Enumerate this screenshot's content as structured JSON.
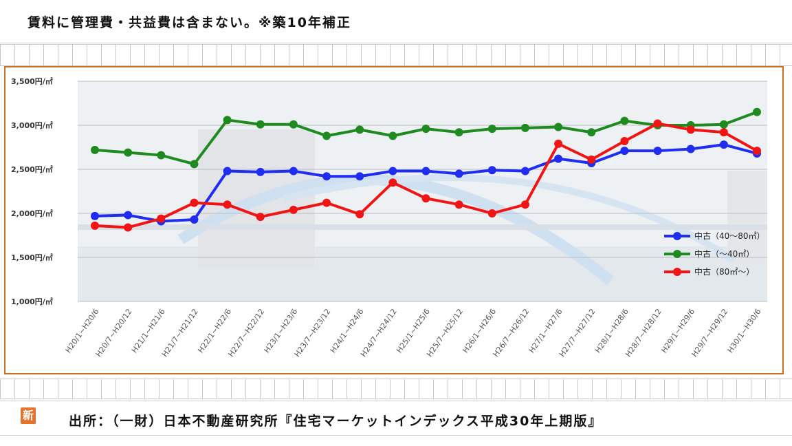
{
  "header": {
    "note": "賃料に管理費・共益費は含まない。※築10年補正"
  },
  "footer": {
    "source": "出所：（一財）日本不動産研究所『住宅マーケットインデックス平成30年上期版』"
  },
  "logo": {
    "char": "新"
  },
  "colors": {
    "frame": "#c8711f",
    "blue": "#1f2df0",
    "green": "#1f8a1f",
    "red": "#f01414"
  },
  "chart_data": {
    "type": "line",
    "title": "",
    "xlabel": "",
    "ylabel": "",
    "ylim": [
      1000,
      3500
    ],
    "yticks": [
      1000,
      1500,
      2000,
      2500,
      3000,
      3500
    ],
    "ytick_labels": [
      "1,000円/㎡",
      "1,500円/㎡",
      "2,000円/㎡",
      "2,500円/㎡",
      "3,000円/㎡",
      "3,500円/㎡"
    ],
    "grid": "horizontal",
    "legend_position": "right",
    "categories": [
      "H20/1~H20/6",
      "H20/7~H20/12",
      "H21/1~H21/6",
      "H21/7~H21/12",
      "H22/1~H22/6",
      "H22/7~H22/12",
      "H23/1~H23/6",
      "H23/7~H23/12",
      "H24/1~H24/6",
      "H24/7~H24/12",
      "H25/1~H25/6",
      "H25/7~H25/12",
      "H26/1~H26/6",
      "H26/7~H26/12",
      "H27/1~H27/6",
      "H27/7~H27/12",
      "H28/1~H28/6",
      "H28/7~H28/12",
      "H29/1~H29/6",
      "H29/7~H29/12",
      "H30/1~H30/6"
    ],
    "series": [
      {
        "name": "中古（40～80㎡）",
        "color": "#1f2df0",
        "values": [
          1970,
          1980,
          1910,
          1930,
          2480,
          2470,
          2480,
          2420,
          2420,
          2480,
          2480,
          2450,
          2490,
          2480,
          2620,
          2570,
          2710,
          2710,
          2730,
          2780,
          2680
        ]
      },
      {
        "name": "中古（～40㎡）",
        "color": "#1f8a1f",
        "values": [
          2720,
          2690,
          2660,
          2560,
          3060,
          3010,
          3010,
          2880,
          2950,
          2880,
          2960,
          2920,
          2960,
          2970,
          2980,
          2920,
          3050,
          3000,
          3000,
          3010,
          3150
        ]
      },
      {
        "name": "中古（80㎡～）",
        "color": "#f01414",
        "values": [
          1860,
          1840,
          1940,
          2120,
          2100,
          1960,
          2040,
          2120,
          1990,
          2350,
          2170,
          2100,
          2000,
          2100,
          2790,
          2610,
          2820,
          3020,
          2950,
          2920,
          2710
        ]
      }
    ]
  }
}
